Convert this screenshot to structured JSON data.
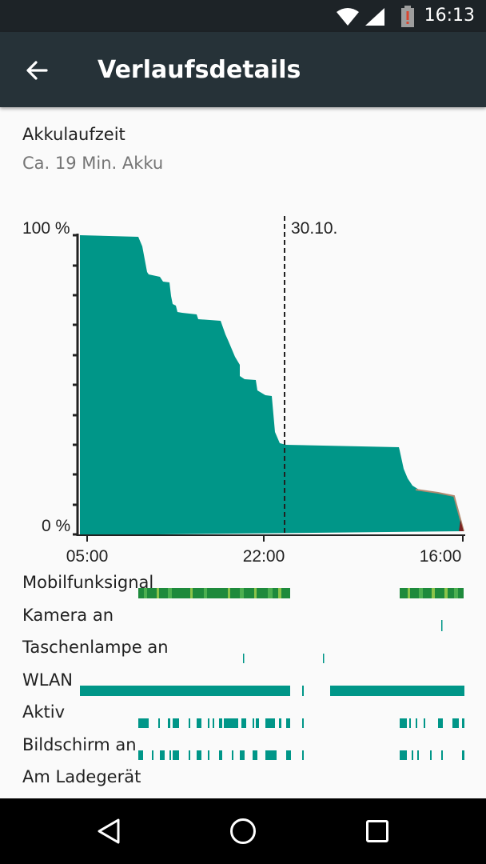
{
  "status_bar": {
    "time": "16:13",
    "icons": [
      "wifi-icon",
      "signal-icon",
      "battery-alert-icon"
    ],
    "battery_warning_color": "#d9452f"
  },
  "app_bar": {
    "title": "Verlaufsdetails",
    "back_icon": "arrow-back-icon",
    "color": "#263238"
  },
  "battery": {
    "title": "Akkulaufzeit",
    "subtitle": "Ca. 19 Min. Akku"
  },
  "chart_data": {
    "type": "area",
    "title": "",
    "ylabel_max": "100 %",
    "ylabel_min": "0 %",
    "ylim": [
      0,
      100
    ],
    "x_ticks": [
      "05:00",
      "22:00",
      "16:00"
    ],
    "day_marker": "30.10.",
    "fill_color": "#009688",
    "x": [
      "05:00",
      "09:30",
      "10:00",
      "11:00",
      "12:00",
      "13:00",
      "14:00",
      "15:00",
      "17:00",
      "18:00",
      "19:00",
      "20:00",
      "21:00",
      "22:00",
      "23:00",
      "09:00",
      "10:00",
      "12:00",
      "14:00",
      "16:00"
    ],
    "values": [
      100,
      99,
      88,
      85,
      76,
      74,
      72,
      64,
      55,
      48,
      40,
      32,
      30,
      31,
      30,
      29,
      16,
      14,
      12,
      0
    ]
  },
  "rows": [
    {
      "label": "Mobilfunksignal"
    },
    {
      "label": "Kamera an"
    },
    {
      "label": "Taschenlampe an"
    },
    {
      "label": "WLAN"
    },
    {
      "label": "Aktiv"
    },
    {
      "label": "Bildschirm an"
    },
    {
      "label": "Am Ladegerät"
    }
  ],
  "colors": {
    "teal": "#009688",
    "signal_green": "#1e8a3c",
    "signal_light": "#8bc34a"
  },
  "nav": {
    "icons": [
      "back-triangle-icon",
      "home-circle-icon",
      "recents-square-icon"
    ]
  }
}
